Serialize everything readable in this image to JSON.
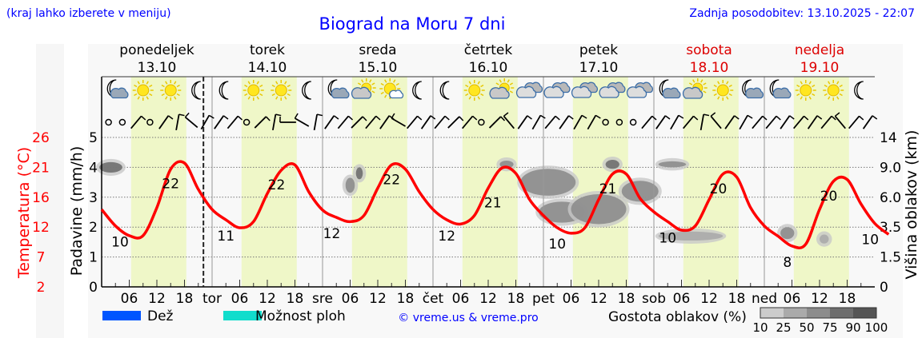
{
  "header": {
    "hint": "(kraj lahko izberete v meniju)",
    "title": "Biograd na Moru 7 dni",
    "updated": "Zadnja posodobitev: 13.10.2025 - 22:07"
  },
  "colors": {
    "title": "#0000ff",
    "temp": "#ff0000",
    "weekend": "#dd0000",
    "daylight": "#eff7c8",
    "rain": "#0055ff",
    "showers": "#11ddcc"
  },
  "chart_data": {
    "type": "line",
    "title": "Biograd na Moru 7 dni",
    "ylabel_left_outer": "Temperatura (°C)",
    "ylabel_left": "Padavine (mm/h)",
    "ylabel_right": "Višina oblakov (km)",
    "temp_ticks": [
      "26",
      "21",
      "16",
      "12",
      "7",
      "2"
    ],
    "precip_ticks": [
      "5",
      "4",
      "3",
      "2",
      "1",
      "0"
    ],
    "cloud_height_ticks": [
      "14",
      "9.0",
      "6.0",
      "3.5",
      "1.5",
      "0"
    ],
    "precip_range": [
      0,
      5
    ],
    "temp_range": [
      2,
      26.5
    ],
    "grid": true,
    "days": [
      {
        "name": "ponedeljek",
        "date": "13.10",
        "short": "",
        "weekend": false
      },
      {
        "name": "torek",
        "date": "14.10",
        "short": "tor",
        "weekend": false
      },
      {
        "name": "sreda",
        "date": "15.10",
        "short": "sre",
        "weekend": false
      },
      {
        "name": "četrtek",
        "date": "16.10",
        "short": "čet",
        "weekend": false
      },
      {
        "name": "petek",
        "date": "17.10",
        "short": "pet",
        "weekend": false
      },
      {
        "name": "sobota",
        "date": "18.10",
        "short": "sob",
        "weekend": true
      },
      {
        "name": "nedelja",
        "date": "19.10",
        "short": "ned",
        "weekend": true
      }
    ],
    "hour_ticks": [
      "06",
      "12",
      "18"
    ],
    "now_hour": 22.12,
    "temperature_series": {
      "name": "Temperatura",
      "hours_step": 3,
      "values": [
        14.7,
        12.0,
        10.4,
        10.4,
        15.0,
        21.3,
        22.3,
        18.0,
        14.7,
        13.0,
        11.7,
        12.7,
        17.3,
        21.1,
        22.0,
        17.6,
        14.6,
        13.4,
        12.7,
        13.7,
        18.2,
        22.0,
        21.3,
        17.6,
        14.7,
        13.0,
        12.3,
        13.7,
        18.2,
        21.5,
        20.6,
        16.3,
        13.7,
        11.7,
        10.8,
        11.7,
        16.3,
        20.5,
        20.5,
        16.5,
        14.3,
        12.7,
        11.3,
        12.0,
        16.3,
        20.5,
        20.0,
        15.0,
        12.0,
        10.3,
        8.7,
        9.0,
        14.7,
        19.3,
        19.6,
        15.6,
        12.4,
        10.6
      ]
    },
    "temp_labels": [
      {
        "hour": 4,
        "text": "10",
        "pos": "below"
      },
      {
        "hour": 15,
        "text": "22",
        "pos": "below"
      },
      {
        "hour": 27,
        "text": "11",
        "pos": "below"
      },
      {
        "hour": 38,
        "text": "22",
        "pos": "below"
      },
      {
        "hour": 50,
        "text": "12",
        "pos": "below"
      },
      {
        "hour": 63,
        "text": "22",
        "pos": "below"
      },
      {
        "hour": 75,
        "text": "12",
        "pos": "below"
      },
      {
        "hour": 85,
        "text": "21",
        "pos": "below"
      },
      {
        "hour": 99,
        "text": "10",
        "pos": "below"
      },
      {
        "hour": 110,
        "text": "21",
        "pos": "below"
      },
      {
        "hour": 123,
        "text": "10",
        "pos": "below"
      },
      {
        "hour": 134,
        "text": "20",
        "pos": "below"
      },
      {
        "hour": 149,
        "text": "8",
        "pos": "below"
      },
      {
        "hour": 158,
        "text": "20",
        "pos": "below"
      },
      {
        "hour": 167,
        "text": "10",
        "pos": "below"
      }
    ],
    "cloud_blobs": [
      {
        "hour": 2,
        "level": 4.0,
        "w": 5,
        "h": 0.35,
        "density": 85
      },
      {
        "hour": 54,
        "level": 3.4,
        "w": 2,
        "h": 0.5,
        "density": 60
      },
      {
        "hour": 56,
        "level": 3.8,
        "w": 1.5,
        "h": 0.4,
        "density": 75
      },
      {
        "hour": 88,
        "level": 4.1,
        "w": 3,
        "h": 0.25,
        "density": 70
      },
      {
        "hour": 97,
        "level": 3.5,
        "w": 12,
        "h": 0.9,
        "density": 50
      },
      {
        "hour": 100,
        "level": 2.5,
        "w": 10,
        "h": 0.7,
        "density": 60
      },
      {
        "hour": 108,
        "level": 2.6,
        "w": 12,
        "h": 1.0,
        "density": 60
      },
      {
        "hour": 111,
        "level": 4.1,
        "w": 3,
        "h": 0.3,
        "density": 80
      },
      {
        "hour": 117,
        "level": 3.2,
        "w": 8,
        "h": 0.7,
        "density": 50
      },
      {
        "hour": 124,
        "level": 4.1,
        "w": 6,
        "h": 0.2,
        "density": 50
      },
      {
        "hour": 128,
        "level": 1.7,
        "w": 14,
        "h": 0.3,
        "density": 25
      },
      {
        "hour": 149,
        "level": 1.8,
        "w": 3,
        "h": 0.4,
        "density": 50
      },
      {
        "hour": 157,
        "level": 1.6,
        "w": 2,
        "h": 0.3,
        "density": 30
      }
    ],
    "weather_icons": [
      "moon-cloud",
      "sun",
      "sun",
      "moon",
      "moon",
      "sun",
      "sun",
      "moon",
      "moon-cloud",
      "sun-cloud",
      "sun-small-cloud",
      "moon",
      "moon",
      "sun",
      "sun-cloud",
      "clouds",
      "clouds",
      "clouds",
      "clouds",
      "clouds",
      "moon-cloud",
      "sun-cloud",
      "sun",
      "moon-cloud",
      "moon-cloud",
      "sun",
      "sun",
      "moon"
    ],
    "wind": [
      "calm",
      "calm",
      40,
      "calm",
      35,
      10,
      310,
      30,
      35,
      40,
      "calm",
      45,
      10,
      270,
      300,
      10,
      35,
      40,
      45,
      40,
      35,
      300,
      40,
      35,
      40,
      45,
      40,
      "calm",
      45,
      320,
      35,
      30,
      40,
      35,
      30,
      30,
      "calm",
      "calm",
      "calm",
      40,
      35,
      30,
      40,
      10,
      320,
      35,
      30,
      40,
      40,
      35,
      40,
      35,
      40,
      320,
      40,
      35
    ]
  },
  "legend": {
    "rain": "Dež",
    "showers": "Možnost ploh",
    "credit": "© vreme.us & vreme.pro",
    "cloud_density": "Gostota oblakov (%)",
    "density_steps": [
      "10",
      "25",
      "50",
      "75",
      "90",
      "100"
    ]
  }
}
